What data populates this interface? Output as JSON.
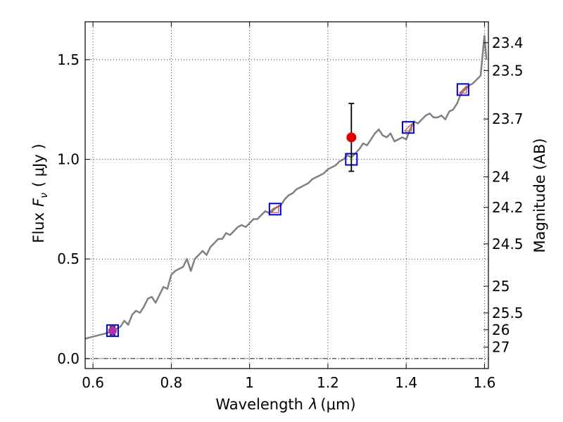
{
  "chart_data": {
    "type": "line",
    "xlabel": "Wavelength",
    "xlabel_symbol": "λ",
    "xlabel_unit": "(μm)",
    "ylabel": "Flux",
    "ylabel_symbol": "F",
    "ylabel_symbol_sub": "ν",
    "ylabel_unit": "( μJy )",
    "y2label": "Magnitude (AB)",
    "xlim": [
      0.58,
      1.61
    ],
    "ylim": [
      -0.05,
      1.69
    ],
    "grid": true,
    "x_ticks": [
      0.6,
      0.8,
      1.0,
      1.2,
      1.4,
      1.6
    ],
    "x_tick_labels": [
      "0.6",
      "0.8",
      "1",
      "1.2",
      "1.4",
      "1.6"
    ],
    "y_ticks": [
      0.0,
      0.5,
      1.0,
      1.5
    ],
    "y_tick_labels": [
      "0.0",
      "0.5",
      "1.0",
      "1.5"
    ],
    "y2_tick_labels": [
      "23.4",
      "23.5",
      "23.7",
      "24",
      "24.2",
      "24.5",
      "25",
      "25.5",
      "26",
      "27"
    ],
    "series": [
      {
        "kind": "model-spectrum",
        "color": "#808080",
        "x": [
          0.58,
          0.6,
          0.62,
          0.64,
          0.65,
          0.67,
          0.68,
          0.69,
          0.7,
          0.71,
          0.72,
          0.73,
          0.74,
          0.75,
          0.76,
          0.77,
          0.78,
          0.79,
          0.8,
          0.81,
          0.82,
          0.83,
          0.84,
          0.85,
          0.86,
          0.87,
          0.88,
          0.89,
          0.9,
          0.91,
          0.92,
          0.93,
          0.94,
          0.95,
          0.96,
          0.97,
          0.98,
          0.99,
          1.0,
          1.01,
          1.02,
          1.03,
          1.04,
          1.05,
          1.06,
          1.07,
          1.08,
          1.09,
          1.1,
          1.11,
          1.12,
          1.13,
          1.14,
          1.15,
          1.16,
          1.17,
          1.18,
          1.19,
          1.2,
          1.21,
          1.22,
          1.23,
          1.24,
          1.25,
          1.26,
          1.27,
          1.28,
          1.29,
          1.3,
          1.31,
          1.32,
          1.33,
          1.34,
          1.35,
          1.36,
          1.37,
          1.38,
          1.39,
          1.4,
          1.41,
          1.42,
          1.43,
          1.44,
          1.45,
          1.46,
          1.47,
          1.48,
          1.49,
          1.5,
          1.51,
          1.52,
          1.53,
          1.54,
          1.55,
          1.56,
          1.57,
          1.58,
          1.59,
          1.6,
          1.605
        ],
        "y": [
          0.1,
          0.11,
          0.12,
          0.13,
          0.14,
          0.16,
          0.19,
          0.17,
          0.22,
          0.24,
          0.23,
          0.26,
          0.3,
          0.31,
          0.28,
          0.32,
          0.36,
          0.35,
          0.42,
          0.44,
          0.45,
          0.46,
          0.5,
          0.44,
          0.5,
          0.52,
          0.54,
          0.52,
          0.56,
          0.58,
          0.6,
          0.6,
          0.63,
          0.62,
          0.64,
          0.66,
          0.67,
          0.66,
          0.68,
          0.7,
          0.7,
          0.72,
          0.74,
          0.73,
          0.75,
          0.76,
          0.77,
          0.8,
          0.82,
          0.83,
          0.85,
          0.86,
          0.87,
          0.88,
          0.9,
          0.91,
          0.92,
          0.93,
          0.95,
          0.96,
          0.97,
          0.99,
          1.0,
          1.02,
          1.01,
          1.03,
          1.05,
          1.08,
          1.07,
          1.1,
          1.13,
          1.15,
          1.12,
          1.11,
          1.13,
          1.09,
          1.1,
          1.11,
          1.1,
          1.15,
          1.19,
          1.18,
          1.2,
          1.22,
          1.23,
          1.21,
          1.21,
          1.22,
          1.2,
          1.24,
          1.25,
          1.28,
          1.33,
          1.35,
          1.37,
          1.38,
          1.4,
          1.42,
          1.62,
          1.5
        ]
      },
      {
        "kind": "model-photometry",
        "marker": "square",
        "color": "#0000cc",
        "x": [
          0.65,
          1.065,
          1.26,
          1.405,
          1.545
        ],
        "y": [
          0.14,
          0.75,
          1.0,
          1.16,
          1.35
        ]
      },
      {
        "kind": "observed",
        "marker": "triangle",
        "color": "#cc4444",
        "x": [
          1.065,
          1.405,
          1.545
        ],
        "y": [
          0.75,
          1.16,
          1.35
        ]
      },
      {
        "kind": "observed",
        "marker": "circle",
        "color": "#e00000",
        "x": [
          1.26
        ],
        "y": [
          1.11
        ],
        "yerr_low": [
          0.17
        ],
        "yerr_high": [
          0.17
        ]
      },
      {
        "kind": "observed",
        "marker": "circle",
        "color": "#b030b0",
        "x": [
          0.65
        ],
        "y": [
          0.14
        ],
        "yerr_low": [
          0.02
        ],
        "yerr_high": [
          0.02
        ]
      }
    ],
    "reference_line": {
      "y": 0.0,
      "style": "dash-dot"
    }
  }
}
